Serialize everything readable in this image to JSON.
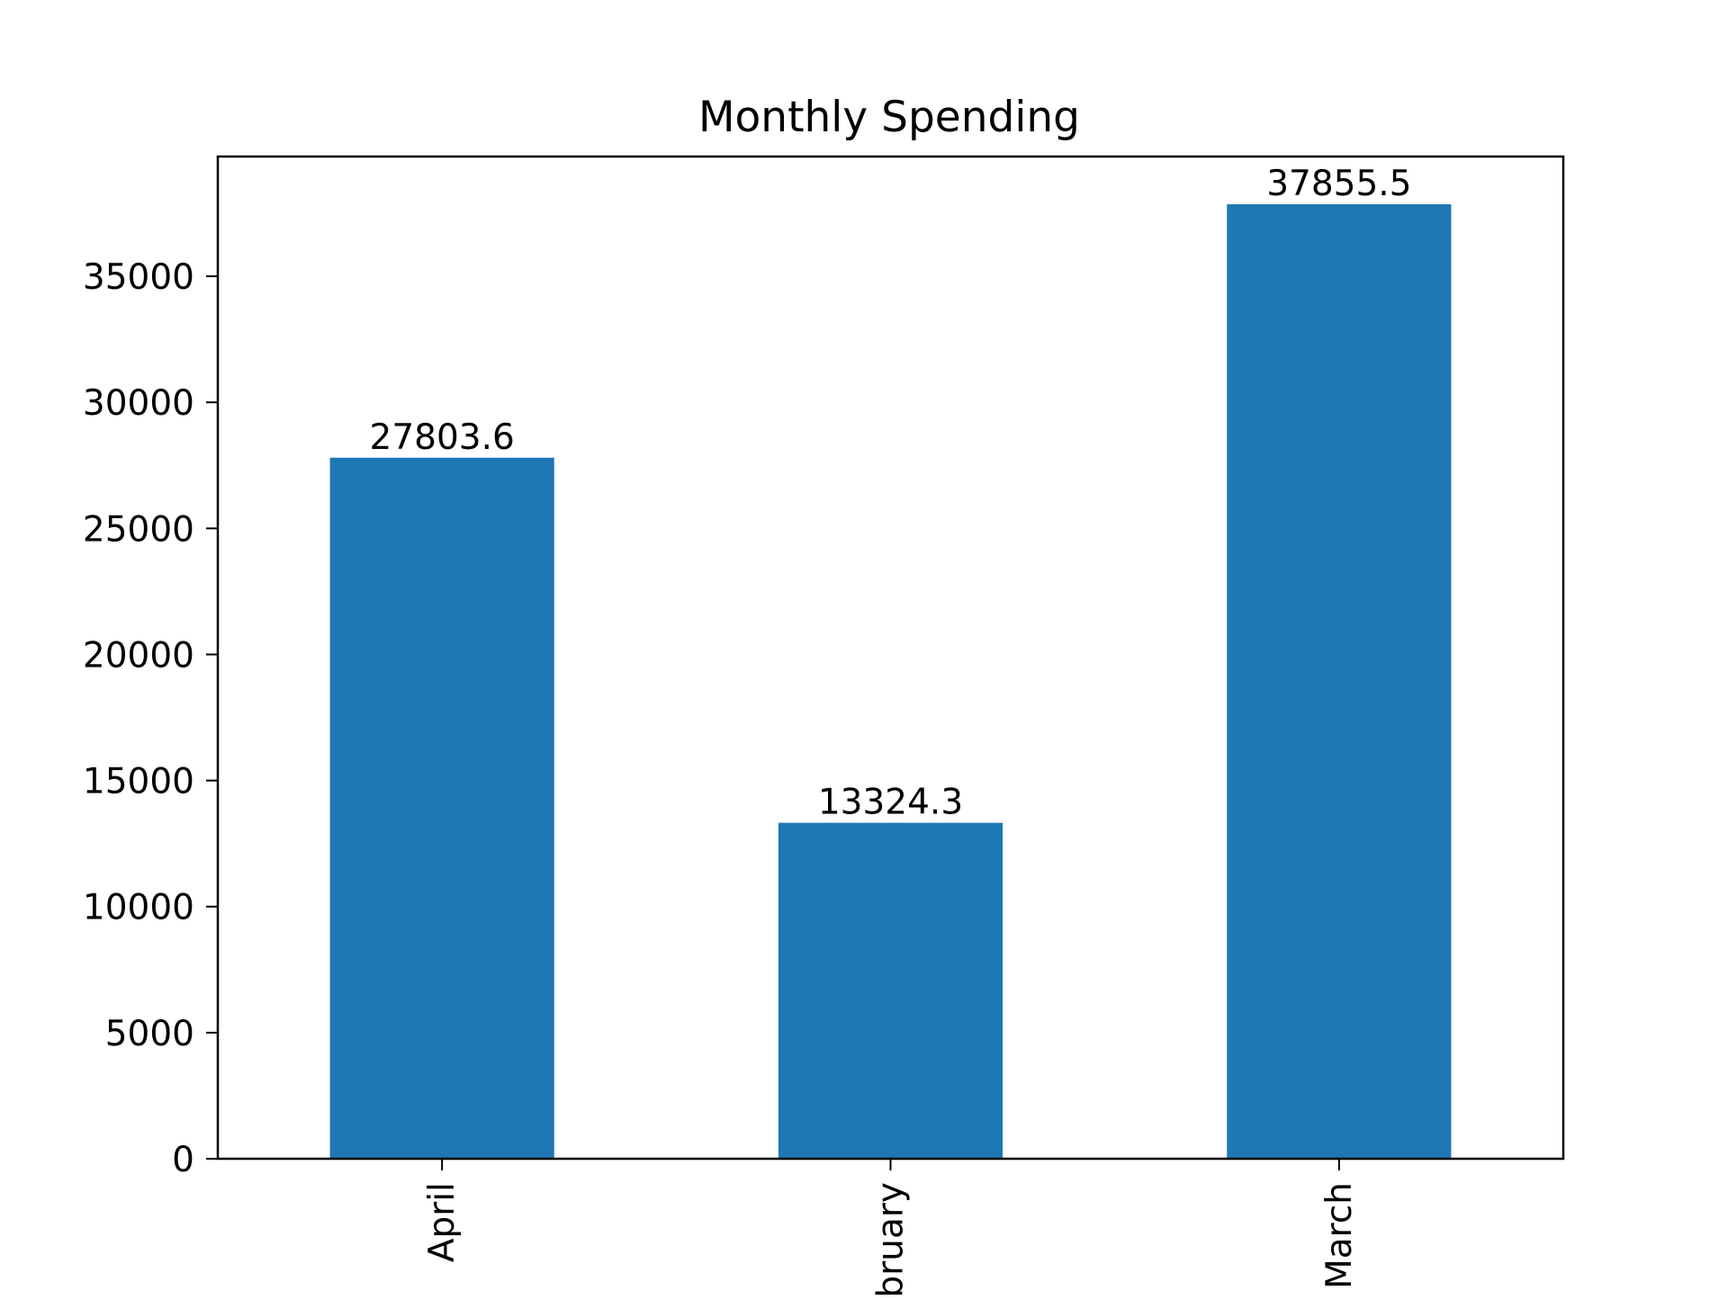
{
  "chart_data": {
    "type": "bar",
    "title": "Monthly Spending",
    "xlabel": "",
    "ylabel": "",
    "categories": [
      "April",
      "February",
      "March"
    ],
    "values": [
      27803.6,
      13324.3,
      37855.5
    ],
    "value_labels": [
      "27803.6",
      "13324.3",
      "37855.5"
    ],
    "yticks": [
      0,
      5000,
      10000,
      15000,
      20000,
      25000,
      30000,
      35000
    ],
    "ylim": [
      0,
      39748.3
    ],
    "grid": false,
    "legend": "none",
    "bar_color": "#1f77b4"
  }
}
